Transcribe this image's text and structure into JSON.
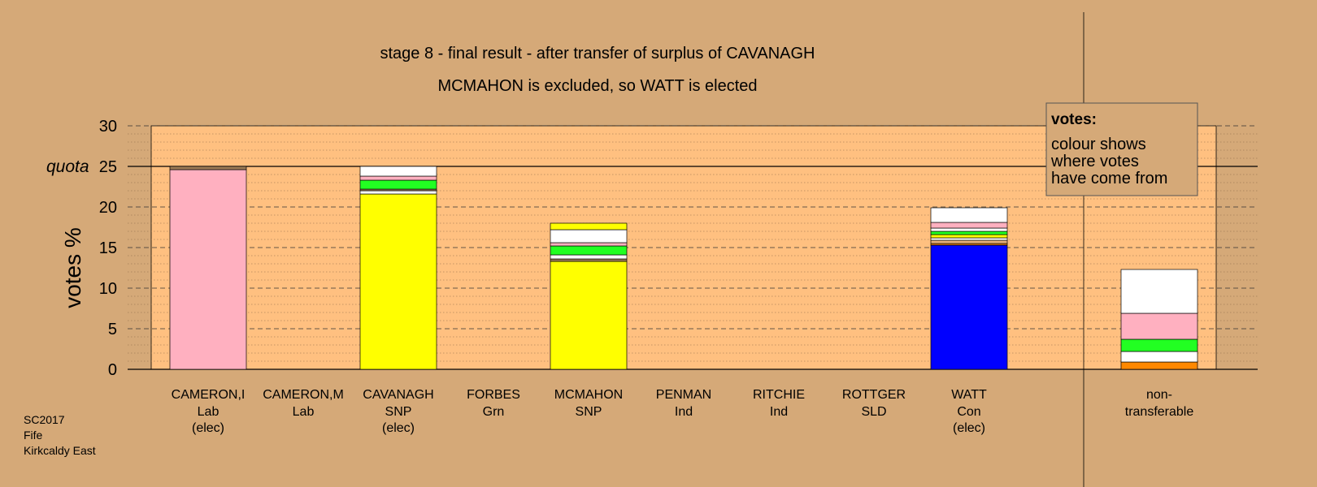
{
  "chart_data": {
    "type": "bar",
    "stacked": true,
    "title": "stage 8 - final result - after transfer of surplus of CAVANAGH",
    "subtitle": "MCMAHON is excluded, so WATT is elected",
    "ylabel": "votes %",
    "ylim": [
      0,
      30
    ],
    "yticks": [
      "0",
      "5",
      "10",
      "15",
      "20",
      "25",
      "30"
    ],
    "quota": {
      "label": "quota",
      "value": 25
    },
    "legend": {
      "placement": "top-right",
      "title": "votes:",
      "lines": [
        "colour shows",
        "where votes",
        "have come from"
      ]
    },
    "colors": {
      "background": "#d5a978",
      "plot_band": "#ffc080",
      "pink": "#ffb0c0",
      "yellow": "#ffff00",
      "green": "#22ff22",
      "blue": "#0000ff",
      "white": "#ffffff",
      "orange": "#ff8800",
      "brown": "#9b7a55",
      "tan": "#e8b07a"
    },
    "categories": [
      {
        "name": "CAMERON,I",
        "party": "Lab",
        "status": "(elec)",
        "segments": [
          {
            "from": 0,
            "to": 24.6,
            "color": "pink"
          },
          {
            "from": 24.6,
            "to": 25.0,
            "color": "brown"
          }
        ]
      },
      {
        "name": "CAMERON,M",
        "party": "Lab",
        "status": "",
        "segments": []
      },
      {
        "name": "CAVANAGH",
        "party": "SNP",
        "status": "(elec)",
        "segments": [
          {
            "from": 0,
            "to": 21.6,
            "color": "yellow"
          },
          {
            "from": 21.6,
            "to": 22.0,
            "color": "white"
          },
          {
            "from": 22.0,
            "to": 22.2,
            "color": "brown"
          },
          {
            "from": 22.2,
            "to": 23.3,
            "color": "green"
          },
          {
            "from": 23.3,
            "to": 23.8,
            "color": "pink"
          },
          {
            "from": 23.8,
            "to": 25.0,
            "color": "white"
          }
        ]
      },
      {
        "name": "FORBES",
        "party": "Grn",
        "status": "",
        "segments": []
      },
      {
        "name": "MCMAHON",
        "party": "SNP",
        "status": "",
        "segments": [
          {
            "from": 0,
            "to": 13.3,
            "color": "yellow"
          },
          {
            "from": 13.3,
            "to": 13.6,
            "color": "brown"
          },
          {
            "from": 13.6,
            "to": 14.1,
            "color": "white"
          },
          {
            "from": 14.1,
            "to": 15.2,
            "color": "green"
          },
          {
            "from": 15.2,
            "to": 15.6,
            "color": "pink"
          },
          {
            "from": 15.6,
            "to": 17.2,
            "color": "white"
          },
          {
            "from": 17.2,
            "to": 18.0,
            "color": "yellow"
          }
        ]
      },
      {
        "name": "PENMAN",
        "party": "Ind",
        "status": "",
        "segments": []
      },
      {
        "name": "RITCHIE",
        "party": "Ind",
        "status": "",
        "segments": []
      },
      {
        "name": "ROTTGER",
        "party": "SLD",
        "status": "",
        "segments": []
      },
      {
        "name": "WATT",
        "party": "Con",
        "status": "(elec)",
        "segments": [
          {
            "from": 0,
            "to": 15.3,
            "color": "blue"
          },
          {
            "from": 15.3,
            "to": 15.5,
            "color": "orange"
          },
          {
            "from": 15.5,
            "to": 15.9,
            "color": "tan"
          },
          {
            "from": 15.9,
            "to": 16.2,
            "color": "white"
          },
          {
            "from": 16.2,
            "to": 16.6,
            "color": "yellow"
          },
          {
            "from": 16.6,
            "to": 17.0,
            "color": "green"
          },
          {
            "from": 17.0,
            "to": 17.4,
            "color": "white"
          },
          {
            "from": 17.4,
            "to": 18.1,
            "color": "pink"
          },
          {
            "from": 18.1,
            "to": 19.9,
            "color": "white"
          }
        ]
      }
    ],
    "nontransferable": {
      "label_line1": "non-",
      "label_line2": "transferable",
      "segments": [
        {
          "from": 0,
          "to": 0.9,
          "color": "orange"
        },
        {
          "from": 0.9,
          "to": 2.2,
          "color": "white"
        },
        {
          "from": 2.2,
          "to": 3.7,
          "color": "green"
        },
        {
          "from": 3.7,
          "to": 6.9,
          "color": "pink"
        },
        {
          "from": 6.9,
          "to": 12.3,
          "color": "white"
        }
      ]
    }
  },
  "source": {
    "line1": "SC2017",
    "line2": "Fife",
    "line3": "Kirkcaldy East"
  }
}
